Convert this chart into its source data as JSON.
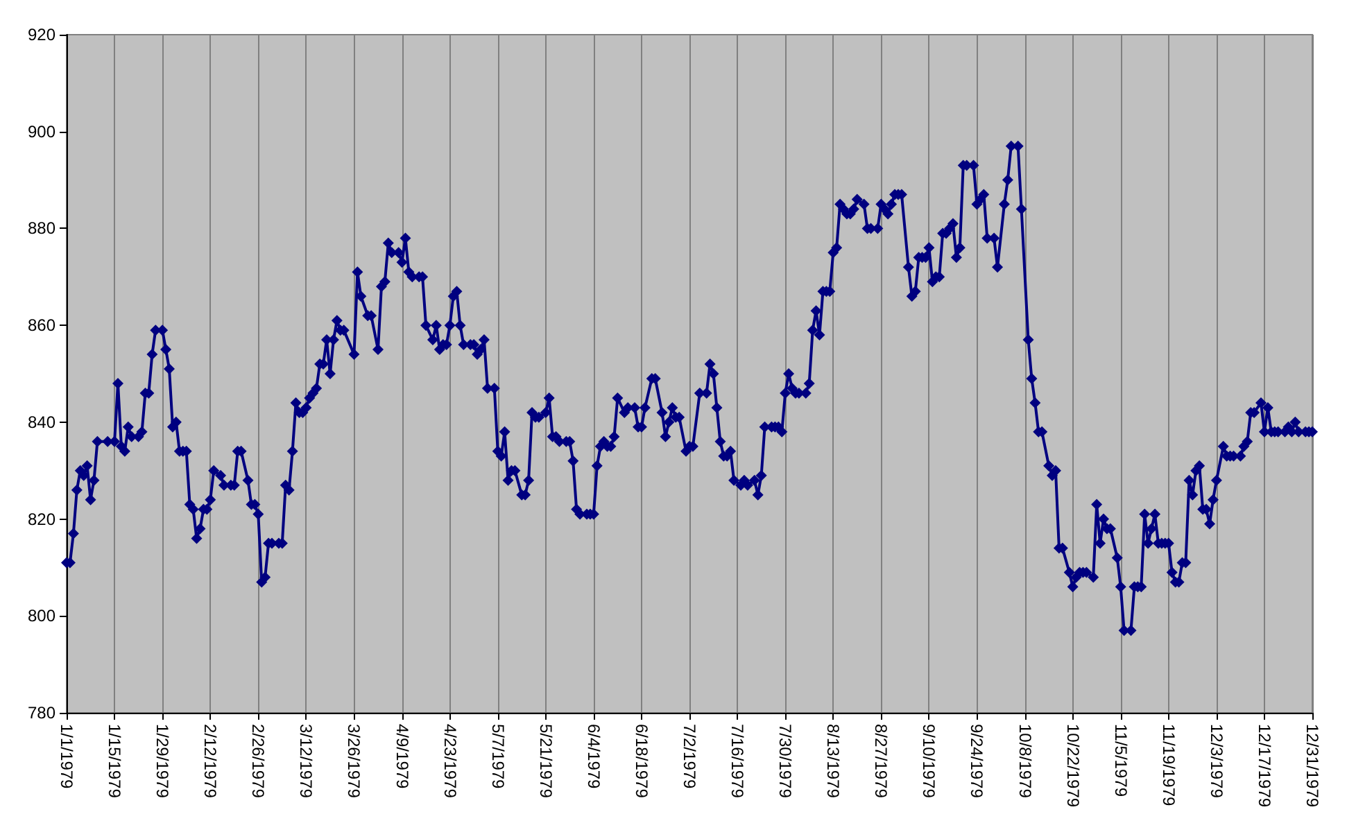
{
  "chart_data": {
    "type": "line",
    "grid": "x",
    "marker": "diamond",
    "line_style": "solid",
    "xlim": [
      "1979-01-01",
      "1979-12-31"
    ],
    "xticks": [
      {
        "value": "1979-01-01",
        "label": "1/1/1979"
      },
      {
        "value": "1979-01-15",
        "label": "1/15/1979"
      },
      {
        "value": "1979-01-29",
        "label": "1/29/1979"
      },
      {
        "value": "1979-02-12",
        "label": "2/12/1979"
      },
      {
        "value": "1979-02-26",
        "label": "2/26/1979"
      },
      {
        "value": "1979-03-12",
        "label": "3/12/1979"
      },
      {
        "value": "1979-03-26",
        "label": "3/26/1979"
      },
      {
        "value": "1979-04-09",
        "label": "4/9/1979"
      },
      {
        "value": "1979-04-23",
        "label": "4/23/1979"
      },
      {
        "value": "1979-05-07",
        "label": "5/7/1979"
      },
      {
        "value": "1979-05-21",
        "label": "5/21/1979"
      },
      {
        "value": "1979-06-04",
        "label": "6/4/1979"
      },
      {
        "value": "1979-06-18",
        "label": "6/18/1979"
      },
      {
        "value": "1979-07-02",
        "label": "7/2/1979"
      },
      {
        "value": "1979-07-16",
        "label": "7/16/1979"
      },
      {
        "value": "1979-07-30",
        "label": "7/30/1979"
      },
      {
        "value": "1979-08-13",
        "label": "8/13/1979"
      },
      {
        "value": "1979-08-27",
        "label": "8/27/1979"
      },
      {
        "value": "1979-09-10",
        "label": "9/10/1979"
      },
      {
        "value": "1979-09-24",
        "label": "9/24/1979"
      },
      {
        "value": "1979-10-08",
        "label": "10/8/1979"
      },
      {
        "value": "1979-10-22",
        "label": "10/22/1979"
      },
      {
        "value": "1979-11-05",
        "label": "11/5/1979"
      },
      {
        "value": "1979-11-19",
        "label": "11/19/1979"
      },
      {
        "value": "1979-12-03",
        "label": "12/3/1979"
      },
      {
        "value": "1979-12-17",
        "label": "12/17/1979"
      },
      {
        "value": "1979-12-31",
        "label": "12/31/1979"
      }
    ],
    "ylim": [
      780,
      920
    ],
    "yticks": [
      780,
      800,
      820,
      840,
      860,
      880,
      900,
      920
    ],
    "series": [
      {
        "color": "#000080",
        "x": [
          "1979-01-01",
          "1979-01-02",
          "1979-01-03",
          "1979-01-04",
          "1979-01-05",
          "1979-01-06",
          "1979-01-07",
          "1979-01-08",
          "1979-01-09",
          "1979-01-10",
          "1979-01-13",
          "1979-01-15",
          "1979-01-16",
          "1979-01-17",
          "1979-01-18",
          "1979-01-19",
          "1979-01-20",
          "1979-01-22",
          "1979-01-23",
          "1979-01-24",
          "1979-01-25",
          "1979-01-26",
          "1979-01-27",
          "1979-01-29",
          "1979-01-30",
          "1979-01-31",
          "1979-02-01",
          "1979-02-02",
          "1979-02-03",
          "1979-02-04",
          "1979-02-05",
          "1979-02-06",
          "1979-02-07",
          "1979-02-08",
          "1979-02-09",
          "1979-02-10",
          "1979-02-11",
          "1979-02-12",
          "1979-02-13",
          "1979-02-15",
          "1979-02-16",
          "1979-02-18",
          "1979-02-19",
          "1979-02-20",
          "1979-02-21",
          "1979-02-23",
          "1979-02-24",
          "1979-02-25",
          "1979-02-26",
          "1979-02-27",
          "1979-02-28",
          "1979-03-01",
          "1979-03-02",
          "1979-03-04",
          "1979-03-05",
          "1979-03-06",
          "1979-03-07",
          "1979-03-08",
          "1979-03-09",
          "1979-03-10",
          "1979-03-11",
          "1979-03-12",
          "1979-03-13",
          "1979-03-14",
          "1979-03-15",
          "1979-03-16",
          "1979-03-17",
          "1979-03-18",
          "1979-03-19",
          "1979-03-20",
          "1979-03-21",
          "1979-03-22",
          "1979-03-23",
          "1979-03-26",
          "1979-03-27",
          "1979-03-28",
          "1979-03-30",
          "1979-03-31",
          "1979-04-02",
          "1979-04-03",
          "1979-04-04",
          "1979-04-05",
          "1979-04-06",
          "1979-04-08",
          "1979-04-09",
          "1979-04-10",
          "1979-04-11",
          "1979-04-12",
          "1979-04-14",
          "1979-04-15",
          "1979-04-16",
          "1979-04-18",
          "1979-04-19",
          "1979-04-20",
          "1979-04-21",
          "1979-04-22",
          "1979-04-23",
          "1979-04-24",
          "1979-04-25",
          "1979-04-26",
          "1979-04-27",
          "1979-04-29",
          "1979-04-30",
          "1979-05-01",
          "1979-05-02",
          "1979-05-03",
          "1979-05-04",
          "1979-05-06",
          "1979-05-07",
          "1979-05-08",
          "1979-05-09",
          "1979-05-10",
          "1979-05-11",
          "1979-05-12",
          "1979-05-14",
          "1979-05-15",
          "1979-05-16",
          "1979-05-17",
          "1979-05-18",
          "1979-05-19",
          "1979-05-21",
          "1979-05-22",
          "1979-05-23",
          "1979-05-24",
          "1979-05-25",
          "1979-05-27",
          "1979-05-28",
          "1979-05-29",
          "1979-05-30",
          "1979-05-31",
          "1979-06-02",
          "1979-06-03",
          "1979-06-04",
          "1979-06-05",
          "1979-06-06",
          "1979-06-07",
          "1979-06-08",
          "1979-06-09",
          "1979-06-10",
          "1979-06-11",
          "1979-06-13",
          "1979-06-14",
          "1979-06-16",
          "1979-06-17",
          "1979-06-18",
          "1979-06-19",
          "1979-06-21",
          "1979-06-22",
          "1979-06-24",
          "1979-06-25",
          "1979-06-26",
          "1979-06-27",
          "1979-06-28",
          "1979-06-29",
          "1979-07-01",
          "1979-07-02",
          "1979-07-03",
          "1979-07-05",
          "1979-07-07",
          "1979-07-08",
          "1979-07-09",
          "1979-07-10",
          "1979-07-11",
          "1979-07-12",
          "1979-07-13",
          "1979-07-14",
          "1979-07-15",
          "1979-07-17",
          "1979-07-18",
          "1979-07-19",
          "1979-07-21",
          "1979-07-22",
          "1979-07-23",
          "1979-07-24",
          "1979-07-26",
          "1979-07-27",
          "1979-07-28",
          "1979-07-29",
          "1979-07-30",
          "1979-07-31",
          "1979-08-01",
          "1979-08-02",
          "1979-08-03",
          "1979-08-05",
          "1979-08-06",
          "1979-08-07",
          "1979-08-08",
          "1979-08-09",
          "1979-08-10",
          "1979-08-11",
          "1979-08-12",
          "1979-08-13",
          "1979-08-14",
          "1979-08-15",
          "1979-08-16",
          "1979-08-17",
          "1979-08-18",
          "1979-08-19",
          "1979-08-20",
          "1979-08-22",
          "1979-08-23",
          "1979-08-24",
          "1979-08-26",
          "1979-08-27",
          "1979-08-28",
          "1979-08-29",
          "1979-08-30",
          "1979-08-31",
          "1979-09-01",
          "1979-09-02",
          "1979-09-04",
          "1979-09-05",
          "1979-09-06",
          "1979-09-07",
          "1979-09-08",
          "1979-09-09",
          "1979-09-10",
          "1979-09-11",
          "1979-09-12",
          "1979-09-13",
          "1979-09-14",
          "1979-09-15",
          "1979-09-16",
          "1979-09-17",
          "1979-09-18",
          "1979-09-19",
          "1979-09-20",
          "1979-09-21",
          "1979-09-23",
          "1979-09-24",
          "1979-09-25",
          "1979-09-26",
          "1979-09-27",
          "1979-09-29",
          "1979-09-30",
          "1979-10-02",
          "1979-10-03",
          "1979-10-04",
          "1979-10-06",
          "1979-10-07",
          "1979-10-09",
          "1979-10-10",
          "1979-10-11",
          "1979-10-12",
          "1979-10-13",
          "1979-10-15",
          "1979-10-16",
          "1979-10-17",
          "1979-10-18",
          "1979-10-19",
          "1979-10-21",
          "1979-10-22",
          "1979-10-23",
          "1979-10-24",
          "1979-10-25",
          "1979-10-26",
          "1979-10-28",
          "1979-10-29",
          "1979-10-30",
          "1979-10-31",
          "1979-11-01",
          "1979-11-02",
          "1979-11-04",
          "1979-11-05",
          "1979-11-06",
          "1979-11-08",
          "1979-11-09",
          "1979-11-10",
          "1979-11-11",
          "1979-11-12",
          "1979-11-13",
          "1979-11-14",
          "1979-11-15",
          "1979-11-16",
          "1979-11-17",
          "1979-11-18",
          "1979-11-19",
          "1979-11-20",
          "1979-11-21",
          "1979-11-22",
          "1979-11-23",
          "1979-11-24",
          "1979-11-25",
          "1979-11-26",
          "1979-11-27",
          "1979-11-28",
          "1979-11-29",
          "1979-11-30",
          "1979-12-01",
          "1979-12-02",
          "1979-12-03",
          "1979-12-05",
          "1979-12-06",
          "1979-12-07",
          "1979-12-08",
          "1979-12-10",
          "1979-12-11",
          "1979-12-12",
          "1979-12-13",
          "1979-12-14",
          "1979-12-16",
          "1979-12-17",
          "1979-12-18",
          "1979-12-19",
          "1979-12-20",
          "1979-12-21",
          "1979-12-23",
          "1979-12-24",
          "1979-12-25",
          "1979-12-26",
          "1979-12-27",
          "1979-12-29",
          "1979-12-30",
          "1979-12-31"
        ],
        "values": [
          811,
          811,
          817,
          826,
          830,
          829,
          831,
          824,
          828,
          836,
          836,
          836,
          848,
          835,
          834,
          839,
          837,
          837,
          838,
          846,
          846,
          854,
          859,
          859,
          855,
          851,
          839,
          840,
          834,
          834,
          834,
          823,
          822,
          816,
          818,
          822,
          822,
          824,
          830,
          829,
          827,
          827,
          827,
          834,
          834,
          828,
          823,
          823,
          821,
          807,
          808,
          815,
          815,
          815,
          815,
          827,
          826,
          834,
          844,
          842,
          842,
          843,
          845,
          846,
          847,
          852,
          852,
          857,
          850,
          857,
          861,
          859,
          859,
          854,
          871,
          866,
          862,
          862,
          855,
          868,
          869,
          877,
          875,
          875,
          873,
          878,
          871,
          870,
          870,
          870,
          860,
          857,
          860,
          855,
          856,
          856,
          860,
          866,
          867,
          860,
          856,
          856,
          856,
          854,
          855,
          857,
          847,
          847,
          834,
          833,
          838,
          828,
          830,
          830,
          825,
          825,
          828,
          842,
          841,
          841,
          842,
          845,
          837,
          837,
          836,
          836,
          836,
          832,
          822,
          821,
          821,
          821,
          821,
          831,
          835,
          836,
          835,
          835,
          837,
          845,
          842,
          843,
          843,
          839,
          839,
          843,
          849,
          849,
          842,
          837,
          840,
          843,
          841,
          841,
          834,
          835,
          835,
          846,
          846,
          852,
          850,
          843,
          836,
          833,
          833,
          834,
          828,
          827,
          828,
          827,
          828,
          825,
          829,
          839,
          839,
          839,
          839,
          838,
          846,
          850,
          847,
          846,
          846,
          846,
          848,
          859,
          863,
          858,
          867,
          867,
          867,
          875,
          876,
          885,
          884,
          883,
          883,
          884,
          886,
          885,
          880,
          880,
          880,
          885,
          884,
          883,
          885,
          887,
          887,
          887,
          872,
          866,
          867,
          874,
          874,
          874,
          876,
          869,
          870,
          870,
          879,
          879,
          880,
          881,
          874,
          876,
          893,
          893,
          893,
          885,
          886,
          887,
          878,
          878,
          872,
          885,
          890,
          897,
          897,
          884,
          857,
          849,
          844,
          838,
          838,
          831,
          829,
          830,
          814,
          814,
          809,
          806,
          808,
          809,
          809,
          809,
          808,
          823,
          815,
          820,
          818,
          818,
          812,
          806,
          797,
          797,
          806,
          806,
          806,
          821,
          815,
          818,
          821,
          815,
          815,
          815,
          815,
          809,
          807,
          807,
          811,
          811,
          828,
          825,
          830,
          831,
          822,
          822,
          819,
          824,
          828,
          835,
          833,
          833,
          833,
          833,
          835,
          836,
          842,
          842,
          844,
          838,
          843,
          838,
          838,
          838,
          838,
          839,
          838,
          840,
          838,
          838,
          838,
          838
        ]
      }
    ]
  }
}
